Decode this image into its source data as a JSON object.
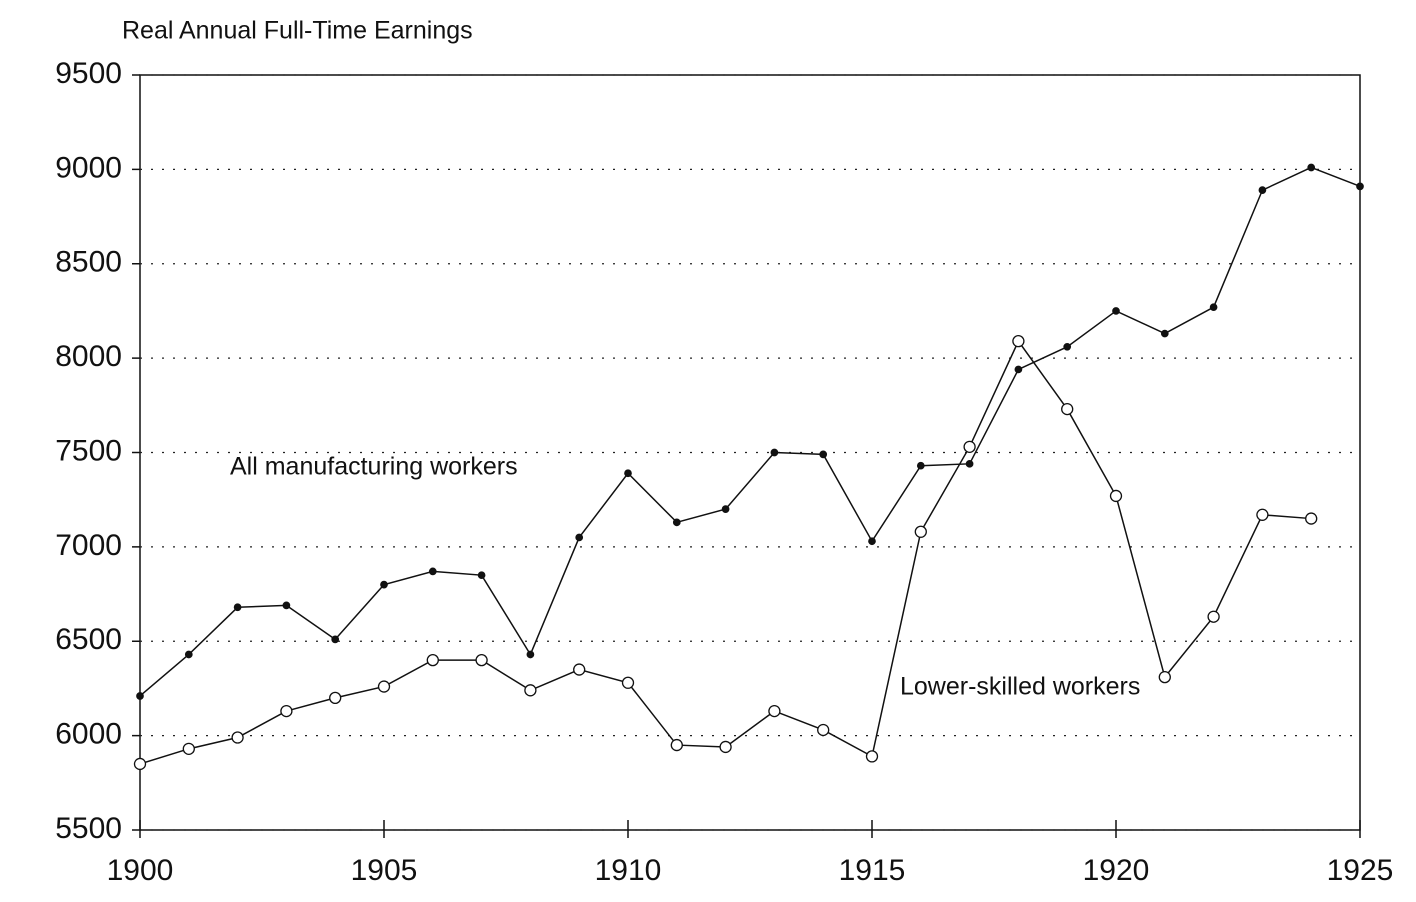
{
  "chart_data": {
    "type": "line",
    "ylabel": "Real Annual Full-Time Earnings",
    "x": [
      1900,
      1901,
      1902,
      1903,
      1904,
      1905,
      1906,
      1907,
      1908,
      1909,
      1910,
      1911,
      1912,
      1913,
      1914,
      1915,
      1916,
      1917,
      1918,
      1919,
      1920,
      1921,
      1922,
      1923,
      1924,
      1925
    ],
    "series": [
      {
        "name": "All manufacturing workers",
        "color": "#111111",
        "marker": "filled",
        "values": [
          6210,
          6430,
          6680,
          6690,
          6510,
          6800,
          6870,
          6850,
          6430,
          7050,
          7390,
          7130,
          7200,
          7500,
          7490,
          7030,
          7430,
          7440,
          7940,
          8060,
          8250,
          8130,
          8270,
          8890,
          9010,
          8910
        ]
      },
      {
        "name": "Lower-skilled workers",
        "color": "#111111",
        "marker": "open",
        "values": [
          5850,
          5930,
          5990,
          6130,
          6200,
          6260,
          6400,
          6400,
          6240,
          6350,
          6280,
          5950,
          5940,
          6130,
          6030,
          5890,
          7080,
          7530,
          8090,
          7730,
          7270,
          6310,
          6630,
          7170,
          7150,
          null
        ]
      }
    ],
    "xlim": [
      1900,
      1925
    ],
    "xticks": [
      1900,
      1905,
      1910,
      1915,
      1920,
      1925
    ],
    "ylim": [
      5500,
      9500
    ],
    "yticks": [
      5500,
      6000,
      6500,
      7000,
      7500,
      8000,
      8500,
      9000,
      9500
    ],
    "grid": true
  }
}
